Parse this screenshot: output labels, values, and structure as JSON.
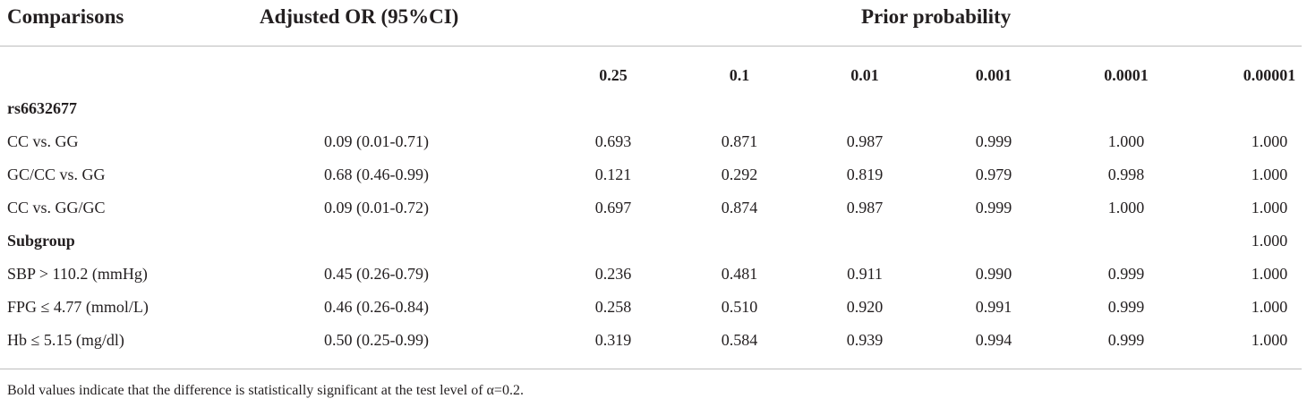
{
  "header": {
    "comparisons": "Comparisons",
    "adjusted_or": "Adjusted OR (95%CI)",
    "prior_probability": "Prior probability"
  },
  "probabilities": [
    "0.25",
    "0.1",
    "0.01",
    "0.001",
    "0.0001",
    "0.00001"
  ],
  "rows": [
    {
      "label": "rs6632677",
      "bold": true,
      "or": "",
      "values": [
        "",
        "",
        "",
        "",
        "",
        ""
      ]
    },
    {
      "label": "CC vs. GG",
      "bold": false,
      "or": "0.09 (0.01-0.71)",
      "values": [
        "0.693",
        "0.871",
        "0.987",
        "0.999",
        "1.000",
        "1.000"
      ]
    },
    {
      "label": "GC/CC vs. GG",
      "bold": false,
      "or": "0.68 (0.46-0.99)",
      "values": [
        "0.121",
        "0.292",
        "0.819",
        "0.979",
        "0.998",
        "1.000"
      ]
    },
    {
      "label": "CC vs. GG/GC",
      "bold": false,
      "or": "0.09 (0.01-0.72)",
      "values": [
        "0.697",
        "0.874",
        "0.987",
        "0.999",
        "1.000",
        "1.000"
      ]
    },
    {
      "label": "Subgroup",
      "bold": true,
      "or": "",
      "values": [
        "",
        "",
        "",
        "",
        "",
        "1.000"
      ]
    },
    {
      "label": "SBP > 110.2 (mmHg)",
      "bold": false,
      "or": "0.45 (0.26-0.79)",
      "values": [
        "0.236",
        "0.481",
        "0.911",
        "0.990",
        "0.999",
        "1.000"
      ]
    },
    {
      "label": "FPG ≤ 4.77 (mmol/L)",
      "bold": false,
      "or": "0.46 (0.26-0.84)",
      "values": [
        "0.258",
        "0.510",
        "0.920",
        "0.991",
        "0.999",
        "1.000"
      ]
    },
    {
      "label": "Hb ≤ 5.15 (mg/dl)",
      "bold": false,
      "or": "0.50 (0.25-0.99)",
      "values": [
        "0.319",
        "0.584",
        "0.939",
        "0.994",
        "0.999",
        "1.000"
      ]
    }
  ],
  "footnote": "Bold values indicate that the difference is statistically significant at the test level of α=0.2."
}
